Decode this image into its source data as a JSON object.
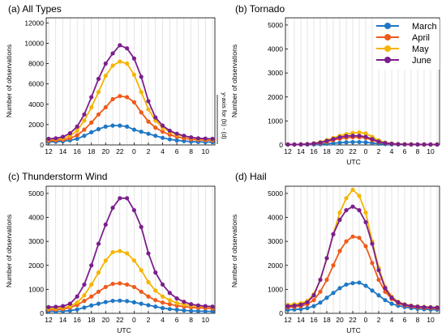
{
  "colors": {
    "March": "#1f77c4",
    "April": "#f05a1a",
    "May": "#f5b400",
    "June": "#7b1f8c",
    "grid": "#cccccc",
    "axis": "#000000"
  },
  "legend": {
    "placement": "top-right of panel (b)",
    "entries": [
      "March",
      "April",
      "May",
      "June"
    ]
  },
  "shared_axis_note": "y-axis for (b) - (d)",
  "chart_data": [
    {
      "type": "line",
      "panel": "a",
      "title": "(a) All Types",
      "xlabel": "",
      "ylabel": "Number of observations",
      "x": [
        12,
        13,
        14,
        15,
        16,
        17,
        18,
        19,
        20,
        21,
        22,
        23,
        0,
        1,
        2,
        3,
        4,
        5,
        6,
        7,
        8,
        9,
        10,
        11
      ],
      "xticks": [
        "12",
        "14",
        "16",
        "18",
        "20",
        "22",
        "0",
        "2",
        "4",
        "6",
        "8",
        "10"
      ],
      "ylim": [
        0,
        12500
      ],
      "yticks": [
        0,
        2000,
        4000,
        6000,
        8000,
        10000,
        12000
      ],
      "grid": "vertical",
      "series": [
        {
          "name": "March",
          "values": [
            300,
            320,
            360,
            450,
            600,
            900,
            1250,
            1550,
            1800,
            1900,
            1900,
            1800,
            1500,
            1300,
            1100,
            900,
            700,
            550,
            450,
            380,
            330,
            300,
            280,
            280
          ]
        },
        {
          "name": "April",
          "values": [
            420,
            450,
            500,
            650,
            950,
            1500,
            2200,
            3000,
            3700,
            4500,
            4800,
            4700,
            4200,
            3200,
            2300,
            1700,
            1300,
            1000,
            800,
            650,
            550,
            500,
            470,
            450
          ]
        },
        {
          "name": "May",
          "values": [
            550,
            580,
            650,
            900,
            1400,
            2400,
            3700,
            5200,
            6800,
            7800,
            8200,
            8000,
            6900,
            5200,
            3500,
            2400,
            1700,
            1300,
            1000,
            850,
            700,
            600,
            560,
            550
          ]
        },
        {
          "name": "June",
          "values": [
            600,
            650,
            800,
            1150,
            1800,
            3000,
            4700,
            6500,
            8000,
            9000,
            9800,
            9500,
            8500,
            6700,
            4300,
            2700,
            1900,
            1400,
            1100,
            900,
            750,
            650,
            620,
            600
          ]
        }
      ]
    },
    {
      "type": "line",
      "panel": "b",
      "title": "(b) Tornado",
      "xlabel": "UTC",
      "ylabel": "Number of observations",
      "x": [
        12,
        13,
        14,
        15,
        16,
        17,
        18,
        19,
        20,
        21,
        22,
        23,
        0,
        1,
        2,
        3,
        4,
        5,
        6,
        7,
        8,
        9,
        10,
        11
      ],
      "xticks": [
        "12",
        "14",
        "16",
        "18",
        "20",
        "22",
        "0",
        "2",
        "4",
        "6",
        "8",
        "10"
      ],
      "ylim": [
        0,
        5300
      ],
      "yticks": [
        0,
        1000,
        2000,
        3000,
        4000,
        5000
      ],
      "grid": "vertical",
      "series": [
        {
          "name": "March",
          "values": [
            10,
            10,
            10,
            15,
            20,
            30,
            50,
            70,
            90,
            110,
            120,
            120,
            110,
            80,
            50,
            35,
            25,
            20,
            15,
            12,
            10,
            10,
            10,
            10
          ]
        },
        {
          "name": "April",
          "values": [
            15,
            15,
            20,
            30,
            50,
            80,
            130,
            200,
            260,
            300,
            320,
            320,
            290,
            200,
            120,
            70,
            45,
            30,
            25,
            20,
            18,
            16,
            15,
            15
          ]
        },
        {
          "name": "May",
          "values": [
            20,
            20,
            25,
            40,
            70,
            120,
            200,
            290,
            380,
            450,
            500,
            520,
            480,
            340,
            190,
            100,
            60,
            40,
            30,
            25,
            22,
            20,
            20,
            20
          ]
        },
        {
          "name": "June",
          "values": [
            20,
            20,
            25,
            35,
            60,
            100,
            170,
            250,
            320,
            370,
            380,
            380,
            340,
            240,
            140,
            80,
            50,
            35,
            28,
            24,
            22,
            20,
            20,
            20
          ]
        }
      ]
    },
    {
      "type": "line",
      "panel": "c",
      "title": "(c) Thunderstorm Wind",
      "xlabel": "UTC",
      "ylabel": "Number of observations",
      "x": [
        12,
        13,
        14,
        15,
        16,
        17,
        18,
        19,
        20,
        21,
        22,
        23,
        0,
        1,
        2,
        3,
        4,
        5,
        6,
        7,
        8,
        9,
        10,
        11
      ],
      "xticks": [
        "12",
        "14",
        "16",
        "18",
        "20",
        "22",
        "0",
        "2",
        "4",
        "6",
        "8",
        "10"
      ],
      "ylim": [
        0,
        5300
      ],
      "yticks": [
        0,
        1000,
        2000,
        3000,
        4000,
        5000
      ],
      "grid": "vertical",
      "series": [
        {
          "name": "March",
          "values": [
            80,
            80,
            90,
            110,
            160,
            240,
            330,
            400,
            470,
            520,
            530,
            510,
            460,
            400,
            340,
            280,
            220,
            180,
            150,
            120,
            100,
            90,
            85,
            80
          ]
        },
        {
          "name": "April",
          "values": [
            150,
            160,
            180,
            240,
            350,
            520,
            700,
            900,
            1100,
            1230,
            1250,
            1200,
            1100,
            900,
            700,
            550,
            450,
            380,
            320,
            280,
            250,
            230,
            220,
            200
          ]
        },
        {
          "name": "May",
          "values": [
            200,
            210,
            230,
            300,
            450,
            750,
            1200,
            1700,
            2200,
            2550,
            2600,
            2500,
            2200,
            1800,
            1300,
            950,
            700,
            550,
            430,
            370,
            330,
            300,
            280,
            270
          ]
        },
        {
          "name": "June",
          "values": [
            260,
            270,
            300,
            400,
            700,
            1200,
            2000,
            2900,
            3700,
            4400,
            4800,
            4800,
            4300,
            3600,
            2500,
            1700,
            1200,
            850,
            620,
            480,
            380,
            330,
            300,
            280
          ]
        }
      ]
    },
    {
      "type": "line",
      "panel": "d",
      "title": "(d) Hail",
      "xlabel": "UTC",
      "ylabel": "Number of observations",
      "x": [
        12,
        13,
        14,
        15,
        16,
        17,
        18,
        19,
        20,
        21,
        22,
        23,
        0,
        1,
        2,
        3,
        4,
        5,
        6,
        7,
        8,
        9,
        10,
        11
      ],
      "xticks": [
        "12",
        "14",
        "16",
        "18",
        "20",
        "22",
        "0",
        "2",
        "4",
        "6",
        "8",
        "10"
      ],
      "ylim": [
        0,
        5300
      ],
      "yticks": [
        0,
        1000,
        2000,
        3000,
        4000,
        5000
      ],
      "grid": "vertical",
      "series": [
        {
          "name": "March",
          "values": [
            150,
            160,
            180,
            220,
            300,
            450,
            650,
            850,
            1050,
            1200,
            1260,
            1280,
            1150,
            950,
            750,
            550,
            400,
            320,
            260,
            220,
            190,
            170,
            160,
            150
          ]
        },
        {
          "name": "April",
          "values": [
            250,
            270,
            300,
            380,
            550,
            900,
            1400,
            2000,
            2600,
            3000,
            3200,
            3150,
            2800,
            2100,
            1400,
            900,
            600,
            420,
            330,
            280,
            250,
            230,
            220,
            210
          ]
        },
        {
          "name": "May",
          "values": [
            350,
            380,
            420,
            520,
            800,
            1400,
            2300,
            3300,
            4200,
            4800,
            5150,
            4900,
            4200,
            3000,
            1900,
            1100,
            700,
            480,
            380,
            320,
            290,
            270,
            260,
            250
          ]
        },
        {
          "name": "June",
          "values": [
            300,
            320,
            360,
            460,
            750,
            1400,
            2300,
            3300,
            3900,
            4300,
            4450,
            4300,
            3800,
            2900,
            1800,
            1050,
            650,
            460,
            360,
            310,
            280,
            260,
            250,
            240
          ]
        }
      ]
    }
  ]
}
